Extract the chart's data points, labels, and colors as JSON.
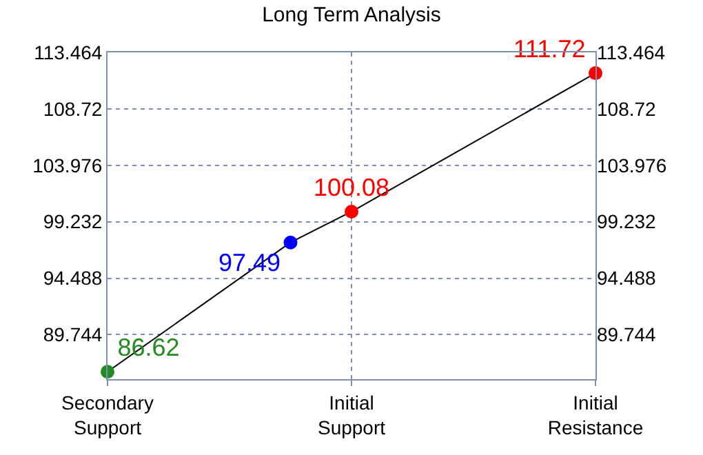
{
  "chart_data": {
    "type": "line",
    "title": "Long Term Analysis",
    "categories": [
      "Secondary\nSupport",
      null,
      null,
      null,
      "Initial\nSupport",
      null,
      null,
      null,
      "Initial\nResistance"
    ],
    "series": [
      {
        "color": "#000000",
        "colors": [
          "#228b22",
          null,
          null,
          "#0000ff",
          "#ff0000",
          null,
          null,
          null,
          "#ff0000"
        ],
        "values": [
          86.62,
          null,
          null,
          97.49,
          100.08,
          null,
          null,
          null,
          111.72
        ]
      }
    ],
    "data_labels": true,
    "marker": "circle",
    "line_style": "solid",
    "grid": true,
    "ylim": [
      86,
      113.464
    ],
    "yticks": [
      89.744,
      94.488,
      99.232,
      103.976,
      108.72,
      113.464
    ],
    "y2lim": [
      86,
      113.464
    ],
    "y2ticks": [
      89.744,
      94.488,
      99.232,
      103.976,
      108.72,
      113.464
    ]
  }
}
